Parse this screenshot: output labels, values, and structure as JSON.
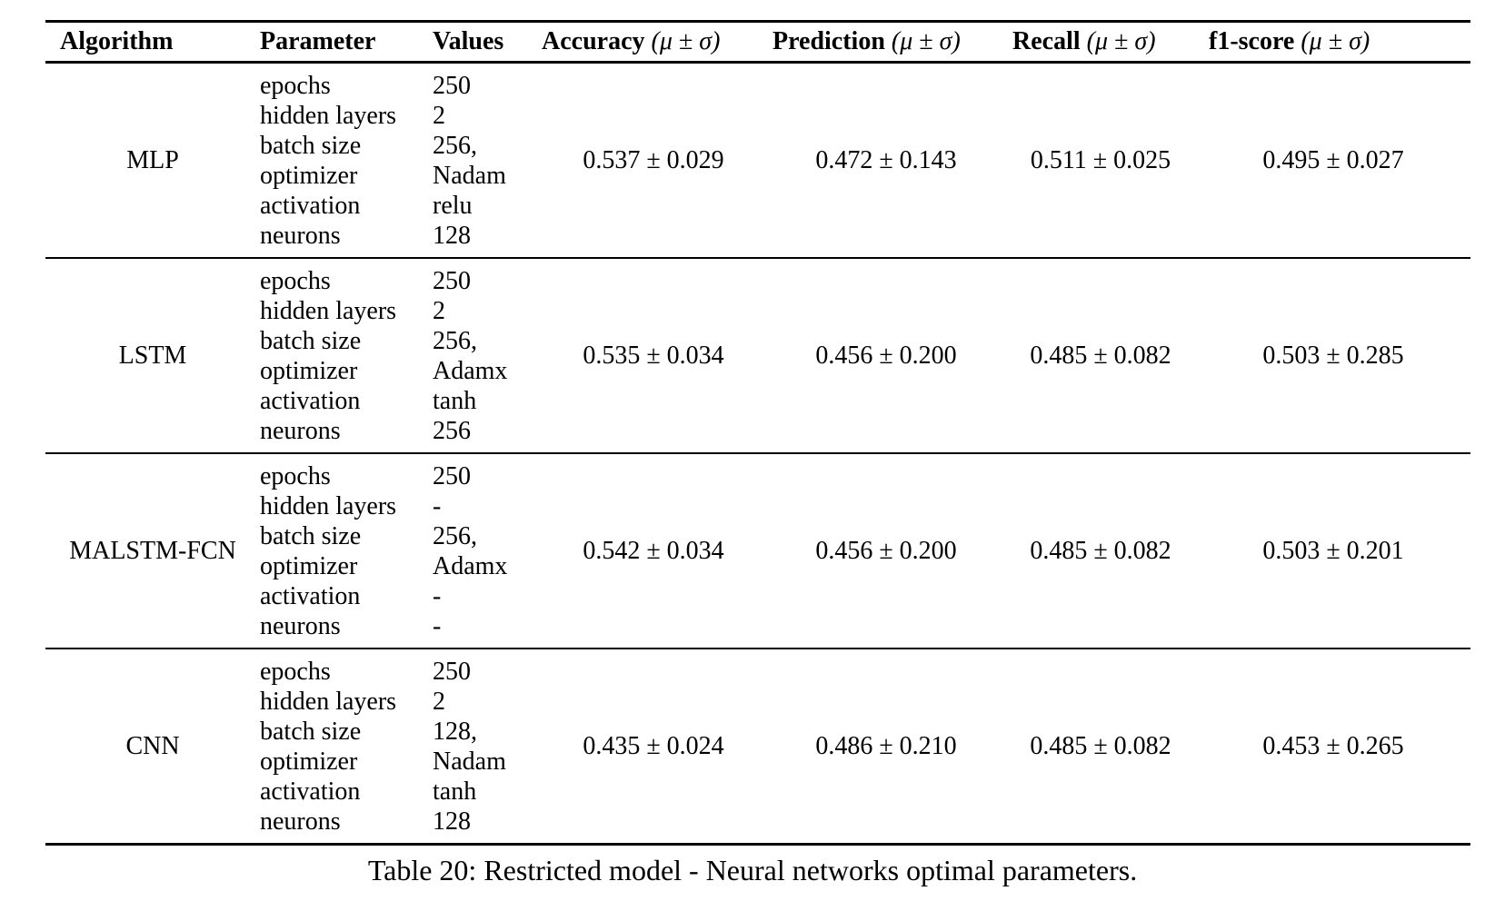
{
  "table": {
    "headers": {
      "algorithm": "Algorithm",
      "parameter": "Parameter",
      "values": "Values",
      "accuracy": "Accuracy",
      "prediction": "Prediction",
      "recall": "Recall",
      "f1": "f1-score",
      "stat_unit": "(μ ± σ)"
    },
    "rows": [
      {
        "algorithm": "MLP",
        "parameters": [
          "epochs",
          "hidden layers",
          "batch size",
          "optimizer",
          "activation",
          "neurons"
        ],
        "values": [
          "250",
          "2",
          "256,",
          "Nadam",
          "relu",
          "128"
        ],
        "accuracy": "0.537 ± 0.029",
        "prediction": "0.472 ± 0.143",
        "recall": "0.511 ± 0.025",
        "f1": "0.495 ± 0.027"
      },
      {
        "algorithm": "LSTM",
        "parameters": [
          "epochs",
          "hidden layers",
          "batch size",
          "optimizer",
          "activation",
          "neurons"
        ],
        "values": [
          "250",
          "2",
          "256,",
          "Adamx",
          "tanh",
          "256"
        ],
        "accuracy": "0.535 ± 0.034",
        "prediction": "0.456 ± 0.200",
        "recall": "0.485 ± 0.082",
        "f1": "0.503 ± 0.285"
      },
      {
        "algorithm": "MALSTM-FCN",
        "parameters": [
          "epochs",
          "hidden layers",
          "batch size",
          "optimizer",
          "activation",
          "neurons"
        ],
        "values": [
          "250",
          "-",
          "256,",
          "Adamx",
          "-",
          "-"
        ],
        "accuracy": "0.542 ± 0.034",
        "prediction": "0.456 ± 0.200",
        "recall": "0.485 ± 0.082",
        "f1": "0.503 ± 0.201"
      },
      {
        "algorithm": "CNN",
        "parameters": [
          "epochs",
          "hidden layers",
          "batch size",
          "optimizer",
          "activation",
          "neurons"
        ],
        "values": [
          "250",
          "2",
          "128,",
          "Nadam",
          "tanh",
          "128"
        ],
        "accuracy": "0.435 ± 0.024",
        "prediction": "0.486 ± 0.210",
        "recall": "0.485 ± 0.082",
        "f1": "0.453 ± 0.265"
      }
    ]
  },
  "caption": "Table 20: Restricted model - Neural networks optimal parameters."
}
